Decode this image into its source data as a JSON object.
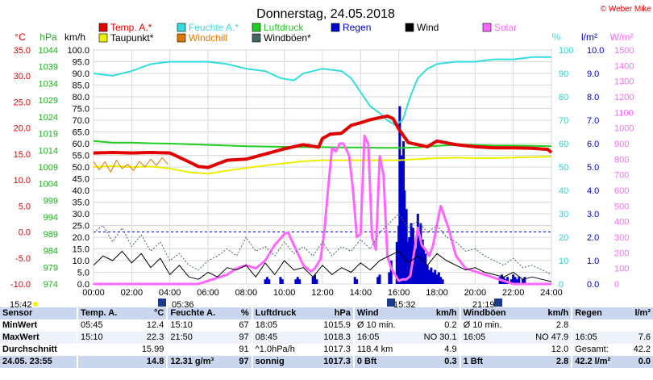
{
  "title": "Donnerstag, 24.05.2018",
  "credit": "© Weber Mike",
  "axis_units": {
    "temp": "°C",
    "pressure": "hPa",
    "wind": "km/h",
    "humidity": "%",
    "rain": "l/m²",
    "solar": "W/m²"
  },
  "legend": [
    {
      "label": "Temp. A.*",
      "color": "#e00000"
    },
    {
      "label": "Feuchte A.*",
      "color": "#33dddd"
    },
    {
      "label": "Luftdruck",
      "color": "#22cc22"
    },
    {
      "label": "Regen",
      "color": "#0000cc"
    },
    {
      "label": "Wind",
      "color": "#000000"
    },
    {
      "label": "Solar",
      "color": "#ff66ff"
    },
    {
      "label": "Taupunkt*",
      "color": "#eeee00"
    },
    {
      "label": "Windchill",
      "color": "#dd7700"
    },
    {
      "label": "Windböen*",
      "color": "#446666"
    }
  ],
  "chart_data": {
    "type": "line",
    "title": "Donnerstag, 24.05.2018",
    "xlim": [
      0,
      24
    ],
    "x_ticks": [
      "00:00",
      "02:00",
      "04:00",
      "06:00",
      "08:00",
      "10:00",
      "12:00",
      "14:00",
      "16:00",
      "18:00",
      "20:00",
      "22:00",
      "24:00"
    ],
    "axes": {
      "temp": {
        "unit": "°C",
        "range": [
          -10,
          35
        ],
        "ticks": [
          "35.0",
          "30.0",
          "25.0",
          "20.0",
          "15.0",
          "10.0",
          "5.0",
          "0.0",
          "-5.0",
          "-10.0"
        ]
      },
      "pressure": {
        "unit": "hPa",
        "range": [
          974,
          1046
        ],
        "ticks": [
          "1044",
          "1039",
          "1034",
          "1029",
          "1024",
          "1019",
          "1014",
          "1009",
          "1004",
          "999",
          "994",
          "989",
          "984",
          "979",
          "974"
        ]
      },
      "wind": {
        "unit": "km/h",
        "range": [
          0,
          100
        ],
        "ticks": [
          "100.0",
          "95.0",
          "90.0",
          "85.0",
          "80.0",
          "75.0",
          "70.0",
          "65.0",
          "60.0",
          "55.0",
          "50.0",
          "45.0",
          "40.0",
          "35.0",
          "30.0",
          "25.0",
          "20.0",
          "15.0",
          "10.0",
          "5.0",
          "0.0"
        ]
      },
      "humidity": {
        "unit": "%",
        "range": [
          0,
          100
        ],
        "ticks": [
          "100",
          "90",
          "80",
          "70",
          "60",
          "50",
          "40",
          "30",
          "20",
          "10",
          "0"
        ]
      },
      "rain": {
        "unit": "l/m²",
        "range": [
          0,
          10
        ],
        "ticks": [
          "10.0",
          "9.0",
          "8.0",
          "7.0",
          "6.0",
          "5.0",
          "4.0",
          "3.0",
          "2.0",
          "1.0",
          "0.0"
        ]
      },
      "solar": {
        "unit": "W/m²",
        "range": [
          0,
          1500
        ],
        "ticks": [
          "1500",
          "1400",
          "1300",
          "1200",
          "1100",
          "1000",
          "900",
          "800",
          "700",
          "600",
          "500",
          "400",
          "300",
          "200",
          "100",
          "0"
        ]
      }
    },
    "series": [
      {
        "name": "Feuchte A.*",
        "axis": "humidity",
        "color": "#33dddd",
        "x": [
          0,
          1,
          2,
          3,
          4,
          5,
          6,
          7,
          8,
          9,
          9.8,
          10.5,
          11,
          12,
          13,
          13.5,
          14,
          14.5,
          15,
          15.4,
          15.8,
          16.2,
          16.6,
          17,
          17.5,
          18,
          19,
          20,
          21,
          22,
          23,
          24
        ],
        "y": [
          90,
          89,
          91,
          94,
          95,
          95,
          95,
          94,
          92,
          91,
          88,
          87,
          90,
          92,
          91,
          88,
          82,
          76,
          73,
          70,
          68,
          70,
          80,
          88,
          92,
          94,
          95,
          95,
          96,
          96,
          97,
          97
        ]
      },
      {
        "name": "Luftdruck",
        "axis": "pressure",
        "color": "#22cc22",
        "x": [
          0,
          1,
          2,
          3,
          4,
          5,
          6,
          7,
          8,
          9,
          10,
          11,
          12,
          13,
          14,
          15,
          16,
          17,
          18,
          19,
          20,
          21,
          22,
          23,
          24
        ],
        "y": [
          1018,
          1017.5,
          1017.5,
          1017.3,
          1017.2,
          1017,
          1016.8,
          1016.6,
          1016.4,
          1016.3,
          1016.2,
          1016.1,
          1016.1,
          1016,
          1016,
          1015.9,
          1015.9,
          1016,
          1016.5,
          1016.8,
          1016.8,
          1016.6,
          1016.6,
          1016.5,
          1016.4
        ]
      },
      {
        "name": "Taupunkt*",
        "axis": "temp",
        "color": "#eeee00",
        "x": [
          0,
          1,
          2,
          3,
          4,
          5,
          6,
          7,
          8,
          9,
          10,
          11,
          12,
          13,
          14,
          15,
          16,
          17,
          18,
          19,
          20,
          21,
          22,
          23,
          24
        ],
        "y": [
          12.5,
          12.7,
          12.5,
          12.6,
          12.2,
          11.5,
          11.2,
          11.8,
          12.3,
          12.8,
          13.2,
          13.6,
          13.8,
          13.8,
          13.8,
          13.8,
          13.8,
          14,
          14.2,
          14.3,
          14.2,
          14.2,
          14.3,
          14.4,
          14.5
        ]
      },
      {
        "name": "Windchill",
        "axis": "temp",
        "color": "#dd7700",
        "x": [
          0,
          0.3,
          0.6,
          0.9,
          1.2,
          1.5,
          1.8,
          2.1,
          2.4,
          2.7,
          3,
          3.3,
          3.6,
          3.9
        ],
        "y": [
          13.5,
          12,
          13.5,
          11.5,
          13.8,
          12.2,
          13,
          11.8,
          13.6,
          12.5,
          14,
          12.8,
          14.3,
          13
        ]
      },
      {
        "name": "Temp. A.*",
        "axis": "temp",
        "color": "#e00000",
        "x": [
          0,
          1,
          2,
          3,
          4,
          5,
          5.5,
          6,
          7,
          8,
          9,
          10,
          11,
          11.8,
          12,
          12.4,
          13,
          13.5,
          14,
          14.5,
          15,
          15.4,
          15.7,
          16,
          16.5,
          17,
          17.5,
          18,
          19,
          20,
          21,
          22,
          23,
          23.8,
          24
        ],
        "y": [
          15.2,
          15.3,
          15.2,
          15.3,
          15.2,
          13.5,
          12.6,
          12.4,
          13.8,
          14,
          15,
          16,
          16.8,
          16.3,
          18,
          18.8,
          19,
          20.5,
          21,
          21.6,
          22,
          22.3,
          21.8,
          19.8,
          17.2,
          16.8,
          16.4,
          17.5,
          16.8,
          16.4,
          16.2,
          16.2,
          16.1,
          15.9,
          15.3
        ]
      },
      {
        "name": "Solar",
        "axis": "solar",
        "color": "#ff66ff",
        "x": [
          0,
          5.5,
          6,
          7,
          7.5,
          8,
          8.5,
          9,
          9.5,
          10,
          10.2,
          10.5,
          11,
          11.4,
          11.6,
          11.9,
          12.1,
          12.3,
          12.5,
          12.7,
          12.9,
          13.1,
          13.3,
          13.4,
          13.6,
          13.8,
          14,
          14.2,
          14.4,
          14.6,
          14.8,
          15,
          15.2,
          15.4,
          15.6,
          15.8,
          16,
          16.2,
          16.4,
          16.6,
          16.8,
          17,
          17.2,
          17.4,
          17.6,
          17.8,
          18,
          18.2,
          18.4,
          18.6,
          19,
          19.5,
          20,
          20.5,
          21,
          21.5,
          22,
          24
        ],
        "y": [
          0,
          0,
          20,
          60,
          100,
          120,
          100,
          150,
          250,
          320,
          330,
          250,
          120,
          80,
          100,
          160,
          340,
          620,
          870,
          850,
          900,
          900,
          850,
          820,
          600,
          300,
          320,
          950,
          900,
          300,
          220,
          820,
          700,
          180,
          100,
          60,
          20,
          30,
          30,
          50,
          200,
          360,
          250,
          220,
          180,
          250,
          380,
          500,
          430,
          360,
          180,
          100,
          80,
          60,
          40,
          20,
          0,
          0
        ]
      },
      {
        "name": "Wind",
        "axis": "wind",
        "color": "#000000",
        "x": [
          0,
          0.5,
          1,
          1.5,
          2,
          2.5,
          3,
          3.5,
          4,
          4.5,
          5,
          5.5,
          6,
          6.5,
          7,
          7.5,
          8,
          8.5,
          9,
          9.5,
          10,
          10.5,
          11,
          11.5,
          12,
          12.5,
          13,
          13.5,
          14,
          14.5,
          15,
          15.5,
          16,
          16.5,
          17,
          17.5,
          18,
          18.5,
          19,
          19.5,
          20,
          20.5,
          21,
          21.5,
          22,
          22.5,
          23,
          23.5,
          24
        ],
        "y": [
          8,
          12,
          10,
          14,
          9,
          13,
          7,
          11,
          4,
          8,
          3,
          2,
          5,
          3,
          7,
          6,
          8,
          3,
          9,
          4,
          10,
          6,
          7,
          3,
          8,
          4,
          7,
          5,
          9,
          6,
          10,
          12,
          14,
          9,
          12,
          8,
          13,
          10,
          8,
          6,
          7,
          5,
          4,
          3,
          5,
          2,
          3,
          2,
          1
        ]
      },
      {
        "name": "Windböen*",
        "axis": "wind",
        "color": "#446666",
        "dashed": true,
        "x": [
          0,
          0.5,
          1,
          1.5,
          2,
          2.5,
          3,
          3.5,
          4,
          4.5,
          5,
          5.5,
          6,
          6.5,
          7,
          7.5,
          8,
          8.5,
          9,
          9.5,
          10,
          10.5,
          11,
          11.5,
          12,
          12.5,
          13,
          13.5,
          14,
          14.5,
          15,
          15.5,
          16,
          16.5,
          17,
          17.5,
          18,
          18.5,
          19,
          19.5,
          20,
          20.5,
          21,
          21.5,
          22,
          22.5,
          23,
          23.5,
          24
        ],
        "y": [
          22,
          25,
          18,
          24,
          16,
          21,
          14,
          18,
          10,
          13,
          8,
          6,
          10,
          12,
          15,
          12,
          20,
          14,
          16,
          12,
          18,
          13,
          16,
          12,
          18,
          12,
          16,
          14,
          19,
          15,
          22,
          26,
          30,
          24,
          27,
          22,
          25,
          20,
          18,
          14,
          15,
          12,
          10,
          8,
          11,
          7,
          8,
          6,
          4
        ]
      }
    ],
    "rain_bars": {
      "name": "Regen",
      "axis": "rain",
      "color": "#0000cc",
      "x": [
        9.0,
        9.1,
        9.2,
        9.8,
        9.9,
        10.6,
        10.7,
        10.8,
        11.5,
        11.6,
        11.7,
        13.7,
        13.8,
        14.9,
        15.0,
        15.5,
        15.6,
        15.9,
        16.0,
        16.05,
        16.1,
        16.15,
        16.2,
        16.25,
        16.3,
        16.35,
        16.4,
        16.45,
        16.5,
        16.55,
        16.6,
        16.65,
        16.7,
        16.75,
        16.8,
        16.85,
        16.9,
        16.95,
        17.0,
        17.05,
        17.1,
        17.15,
        17.2,
        17.25,
        17.3,
        17.35,
        17.4,
        17.5,
        17.6,
        17.7,
        17.8,
        17.9,
        18.0,
        18.1,
        18.2,
        18.3,
        21.3,
        21.4,
        21.5,
        21.6,
        21.7,
        21.9,
        22.0,
        22.1,
        22.2,
        22.3,
        22.5,
        22.6
      ],
      "y": [
        0.2,
        0.3,
        0.2,
        0.3,
        0.2,
        0.2,
        0.3,
        0.2,
        0.3,
        0.4,
        0.2,
        0.3,
        0.2,
        0.3,
        0.4,
        0.5,
        1.0,
        1.8,
        2.5,
        7.6,
        4.2,
        5.5,
        3.0,
        6.1,
        4.0,
        2.5,
        3.2,
        1.8,
        1.2,
        2.0,
        1.0,
        2.6,
        1.5,
        2.4,
        1.0,
        1.6,
        0.8,
        1.5,
        3.0,
        2.2,
        1.8,
        2.6,
        1.2,
        1.9,
        1.5,
        0.9,
        1.3,
        0.8,
        0.6,
        0.7,
        0.5,
        0.6,
        0.4,
        0.5,
        0.3,
        0.2,
        0.3,
        0.4,
        0.3,
        0.2,
        0.3,
        0.2,
        0.4,
        0.3,
        0.2,
        0.3,
        0.2,
        0.3
      ]
    },
    "dew_zero_line": {
      "value": 0,
      "axis": "temp"
    },
    "time_markers": {
      "sunrise": "05:36",
      "sunset": "21:19",
      "rain_start": "15:32",
      "left_mark": "15:42"
    }
  },
  "table": {
    "header": [
      "Sensor",
      "Temp. A.",
      "°C",
      "Feuchte A.",
      "%",
      "Luftdruck",
      "hPa",
      "Wind",
      "km/h",
      "Windböen",
      "km/h",
      "Regen",
      "l/m²"
    ],
    "rows": [
      [
        "MinWert",
        "05:45",
        "12.4",
        "15:10",
        "67",
        "18:05",
        "1015.9",
        "Ø 10 min.",
        "0.2",
        "Ø 10 min.",
        "2.8",
        "",
        ""
      ],
      [
        "MaxWert",
        "15:10",
        "22.3",
        "21:50",
        "97",
        "08:45",
        "1018.3",
        "16:05",
        "NO 30.1",
        "16:05",
        "NO 47.9",
        "16:05",
        "7.6"
      ],
      [
        "Durchschnitt",
        "",
        "15.99",
        "",
        "91",
        "^1.0hPa/h",
        "1017.3",
        "118.4 km",
        "4.9",
        "",
        "12.0",
        "Gesamt:",
        "42.2"
      ],
      [
        "24.05. 23:55",
        "",
        "14.8",
        "12.31 g/m³",
        "97",
        "sonnig",
        "1017.3",
        "0 Bft",
        "0.3",
        "1 Bft",
        "2.8",
        "42.2 l/m²",
        "0.0"
      ]
    ]
  }
}
